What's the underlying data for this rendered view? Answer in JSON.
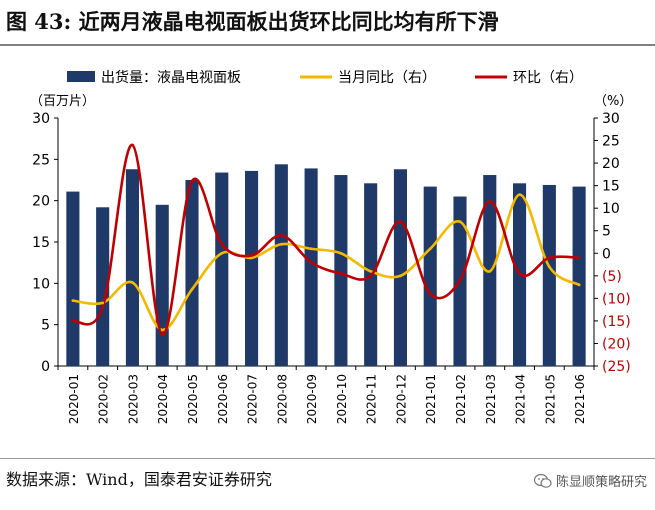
{
  "title": "图 43: 近两月液晶电视面板出货环比同比均有所下滑",
  "source": "数据来源：Wind，国泰君安证券研究",
  "watermark": "陈显顺策略研究",
  "colors": {
    "bar": "#1f3a68",
    "yoy": "#f5b800",
    "mom": "#c00000",
    "neg_tick": "#c00000"
  },
  "chart_data": {
    "type": "bar-line-combo",
    "categories": [
      "2020-01",
      "2020-02",
      "2020-03",
      "2020-04",
      "2020-05",
      "2020-06",
      "2020-07",
      "2020-08",
      "2020-09",
      "2020-10",
      "2020-11",
      "2020-12",
      "2021-01",
      "2021-02",
      "2021-03",
      "2021-04",
      "2021-05",
      "2021-06"
    ],
    "left_axis": {
      "unit": "（百万片）",
      "range": [
        0,
        30
      ],
      "ticks": [
        "0",
        "5",
        "10",
        "15",
        "20",
        "25",
        "30"
      ]
    },
    "right_axis": {
      "unit": "（%）",
      "range": [
        -25,
        30
      ],
      "ticks": [
        "30",
        "25",
        "20",
        "15",
        "10",
        "5",
        "0",
        "(5)",
        "(10)",
        "(15)",
        "(20)",
        "(25)"
      ],
      "tick_values": [
        30,
        25,
        20,
        15,
        10,
        5,
        0,
        -5,
        -10,
        -15,
        -20,
        -25
      ]
    },
    "series": [
      {
        "name": "出货量：液晶电视面板",
        "type": "bar",
        "axis": "left",
        "values": [
          21.1,
          19.2,
          23.8,
          19.5,
          22.5,
          23.4,
          23.6,
          24.4,
          23.9,
          23.1,
          22.1,
          23.8,
          21.7,
          20.5,
          23.1,
          22.1,
          21.9,
          21.7
        ]
      },
      {
        "name": "当月同比（右）",
        "type": "line",
        "axis": "right",
        "values": [
          -10.5,
          -11,
          -6.5,
          -17,
          -8,
          0,
          -1,
          2,
          1,
          0,
          -4,
          -5,
          1,
          7,
          -4,
          13,
          -3,
          -7
        ]
      },
      {
        "name": "环比（右）",
        "type": "line",
        "axis": "right",
        "values": [
          -15,
          -12,
          24,
          -18,
          16,
          2,
          -0.5,
          4,
          -2,
          -4.5,
          -5,
          7,
          -9,
          -6,
          11.5,
          -4.5,
          -1,
          -1
        ]
      }
    ]
  }
}
